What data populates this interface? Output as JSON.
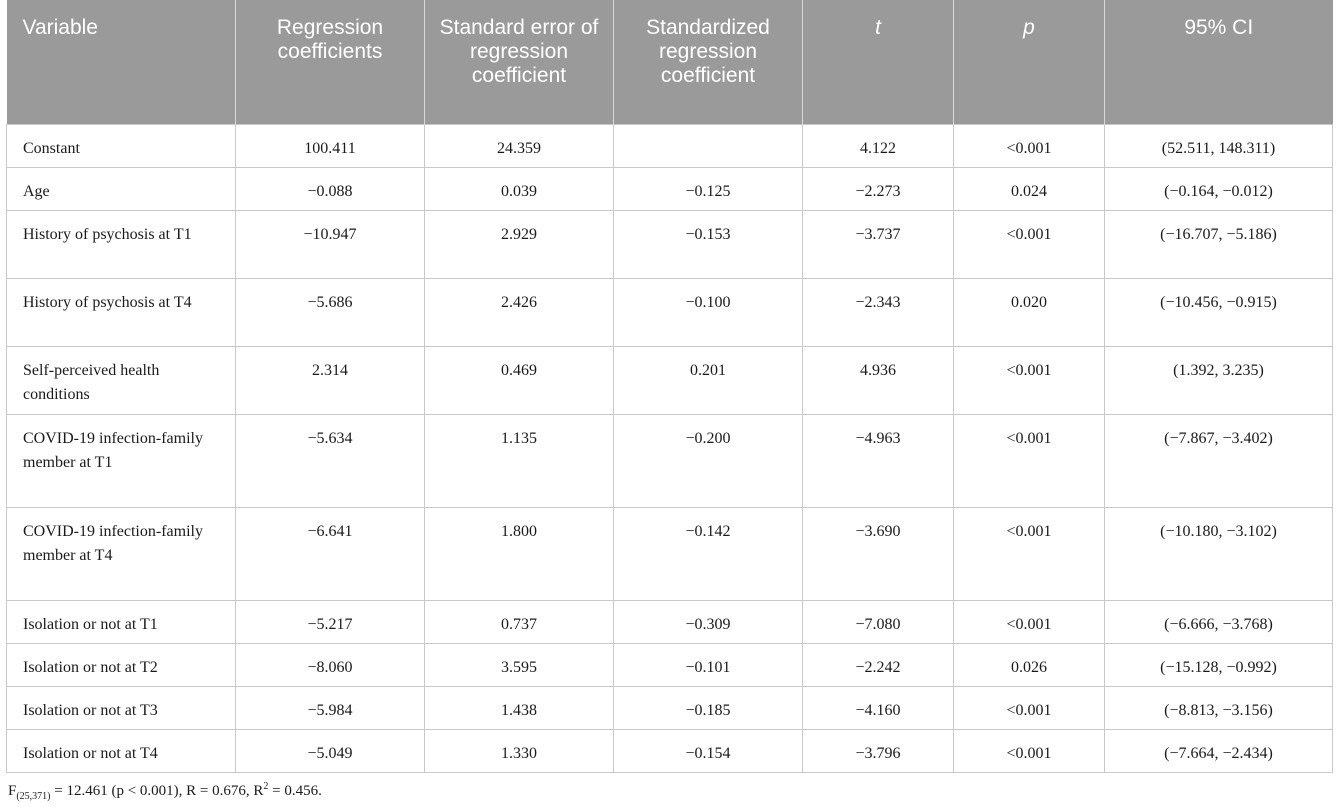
{
  "headers": {
    "variable": "Variable",
    "regression_coefficients": "Regression coefficients",
    "standard_error": "Standard error of regression coefficient",
    "standardized_coefficient": "Standardized regression coefficient",
    "t": "t",
    "p": "p",
    "ci": "95% CI"
  },
  "rows": [
    {
      "variable": "Constant",
      "coef": "100.411",
      "se": "24.359",
      "std": "",
      "t": "4.122",
      "p": "<0.001",
      "ci": "(52.511, 148.311)"
    },
    {
      "variable": "Age",
      "coef": "−0.088",
      "se": "0.039",
      "std": "−0.125",
      "t": "−2.273",
      "p": "0.024",
      "ci": "(−0.164, −0.012)"
    },
    {
      "variable": "History of psychosis at T1",
      "coef": "−10.947",
      "se": "2.929",
      "std": "−0.153",
      "t": "−3.737",
      "p": "<0.001",
      "ci": "(−16.707, −5.186)"
    },
    {
      "variable": "History of psychosis at T4",
      "coef": "−5.686",
      "se": "2.426",
      "std": "−0.100",
      "t": "−2.343",
      "p": "0.020",
      "ci": "(−10.456, −0.915)"
    },
    {
      "variable": "Self-perceived health conditions",
      "coef": "2.314",
      "se": "0.469",
      "std": "0.201",
      "t": "4.936",
      "p": "<0.001",
      "ci": "(1.392, 3.235)"
    },
    {
      "variable": "COVID-19 infection-family member at T1",
      "coef": "−5.634",
      "se": "1.135",
      "std": "−0.200",
      "t": "−4.963",
      "p": "<0.001",
      "ci": "(−7.867, −3.402)"
    },
    {
      "variable": "COVID-19 infection-family member at T4",
      "coef": "−6.641",
      "se": "1.800",
      "std": "−0.142",
      "t": "−3.690",
      "p": "<0.001",
      "ci": "(−10.180, −3.102)"
    },
    {
      "variable": "Isolation or not at T1",
      "coef": "−5.217",
      "se": "0.737",
      "std": "−0.309",
      "t": "−7.080",
      "p": "<0.001",
      "ci": "(−6.666, −3.768)"
    },
    {
      "variable": "Isolation or not at T2",
      "coef": "−8.060",
      "se": "3.595",
      "std": "−0.101",
      "t": "−2.242",
      "p": "0.026",
      "ci": "(−15.128, −0.992)"
    },
    {
      "variable": "Isolation or not at T3",
      "coef": "−5.984",
      "se": "1.438",
      "std": "−0.185",
      "t": "−4.160",
      "p": "<0.001",
      "ci": "(−8.813, −3.156)"
    },
    {
      "variable": "Isolation or not at T4",
      "coef": "−5.049",
      "se": "1.330",
      "std": "−0.154",
      "t": "−3.796",
      "p": "<0.001",
      "ci": "(−7.664, −2.434)"
    }
  ],
  "footnote": {
    "f_symbol": "F",
    "f_df": "(25,371)",
    "f_value": " = 12.461 (p < 0.001), R = 0.676, R",
    "r2_exp": "2",
    "r2_value": " = 0.456."
  },
  "colors": {
    "header_bg": "#9a9a9a",
    "header_text": "#ffffff",
    "grid": "#c9c9c9"
  }
}
